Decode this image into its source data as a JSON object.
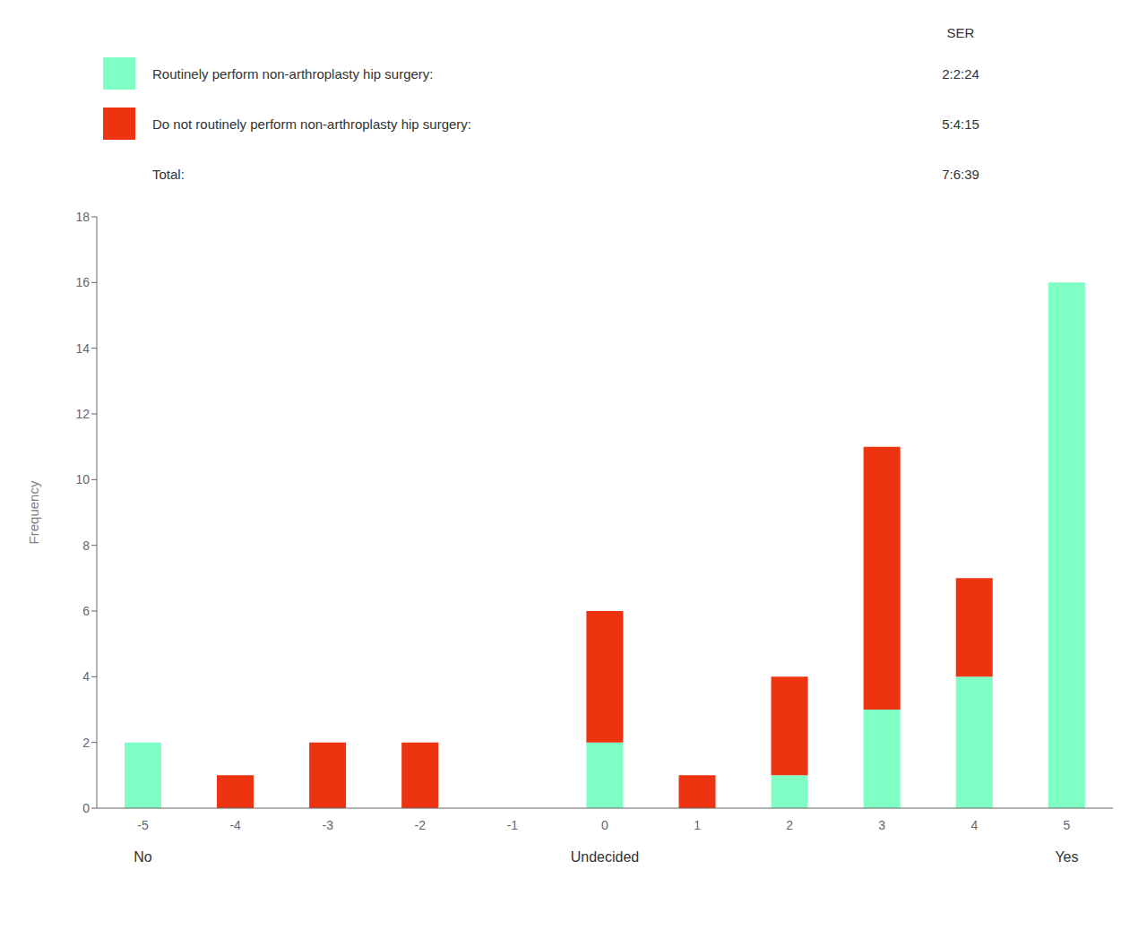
{
  "chart_data": {
    "type": "bar",
    "stacked": true,
    "grid": false,
    "legend": "top",
    "categories": [
      "-5",
      "-4",
      "-3",
      "-2",
      "-1",
      "0",
      "1",
      "2",
      "3",
      "4",
      "5"
    ],
    "series": [
      {
        "name": "Routinely perform non-arthroplasty hip surgery:",
        "color": "#7FFFC4",
        "values": [
          2,
          0,
          0,
          0,
          0,
          2,
          0,
          1,
          3,
          4,
          16
        ],
        "ser": "2:2:24"
      },
      {
        "name": "Do not routinely perform non-arthroplasty hip surgery:",
        "color": "#EE3311",
        "values": [
          0,
          1,
          2,
          2,
          0,
          4,
          1,
          3,
          8,
          3,
          0
        ],
        "ser": "5:4:15"
      }
    ],
    "ser_header": "SER",
    "total": {
      "label": "Total:",
      "ser": "7:6:39"
    },
    "x_sublabels": [
      {
        "category": "-5",
        "label": "No"
      },
      {
        "category": "0",
        "label": "Undecided"
      },
      {
        "category": "5",
        "label": "Yes"
      }
    ],
    "ylabel": "Frequency",
    "ylim": [
      0,
      18
    ],
    "yticks": [
      0,
      2,
      4,
      6,
      8,
      10,
      12,
      14,
      16,
      18
    ],
    "background_color": "#FFFFFF"
  }
}
